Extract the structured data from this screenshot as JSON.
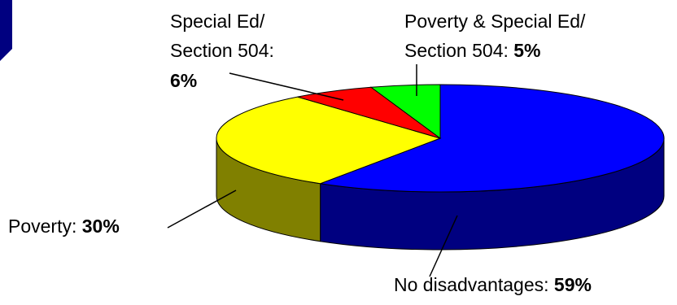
{
  "chart_data": {
    "type": "pie",
    "title": "",
    "three_d": true,
    "start_angle_deg": -90,
    "slices": [
      {
        "name": "No disadvantages",
        "label_lines": [
          "No disadvantages: "
        ],
        "value_label": "59%",
        "value": 59,
        "color": "#0000ff",
        "side_color": "#000080"
      },
      {
        "name": "Poverty",
        "label_lines": [
          "Poverty: "
        ],
        "value_label": "30%",
        "value": 30,
        "color": "#ffff00",
        "side_color": "#808000"
      },
      {
        "name": "Special Ed/ Section 504",
        "label_lines": [
          "Special Ed/",
          "Section 504:",
          ""
        ],
        "value_label": "6%",
        "value": 6,
        "color": "#ff0000",
        "side_color": "#800000"
      },
      {
        "name": "Poverty & Special Ed/ Section 504",
        "label_lines": [
          "Poverty & Special Ed/",
          "Section 504: "
        ],
        "value_label": "5%",
        "value": 5,
        "color": "#00ff00",
        "side_color": "#008000"
      }
    ]
  },
  "decor": {
    "top_left_shape_color": "#000080",
    "outline_color": "#000000"
  }
}
